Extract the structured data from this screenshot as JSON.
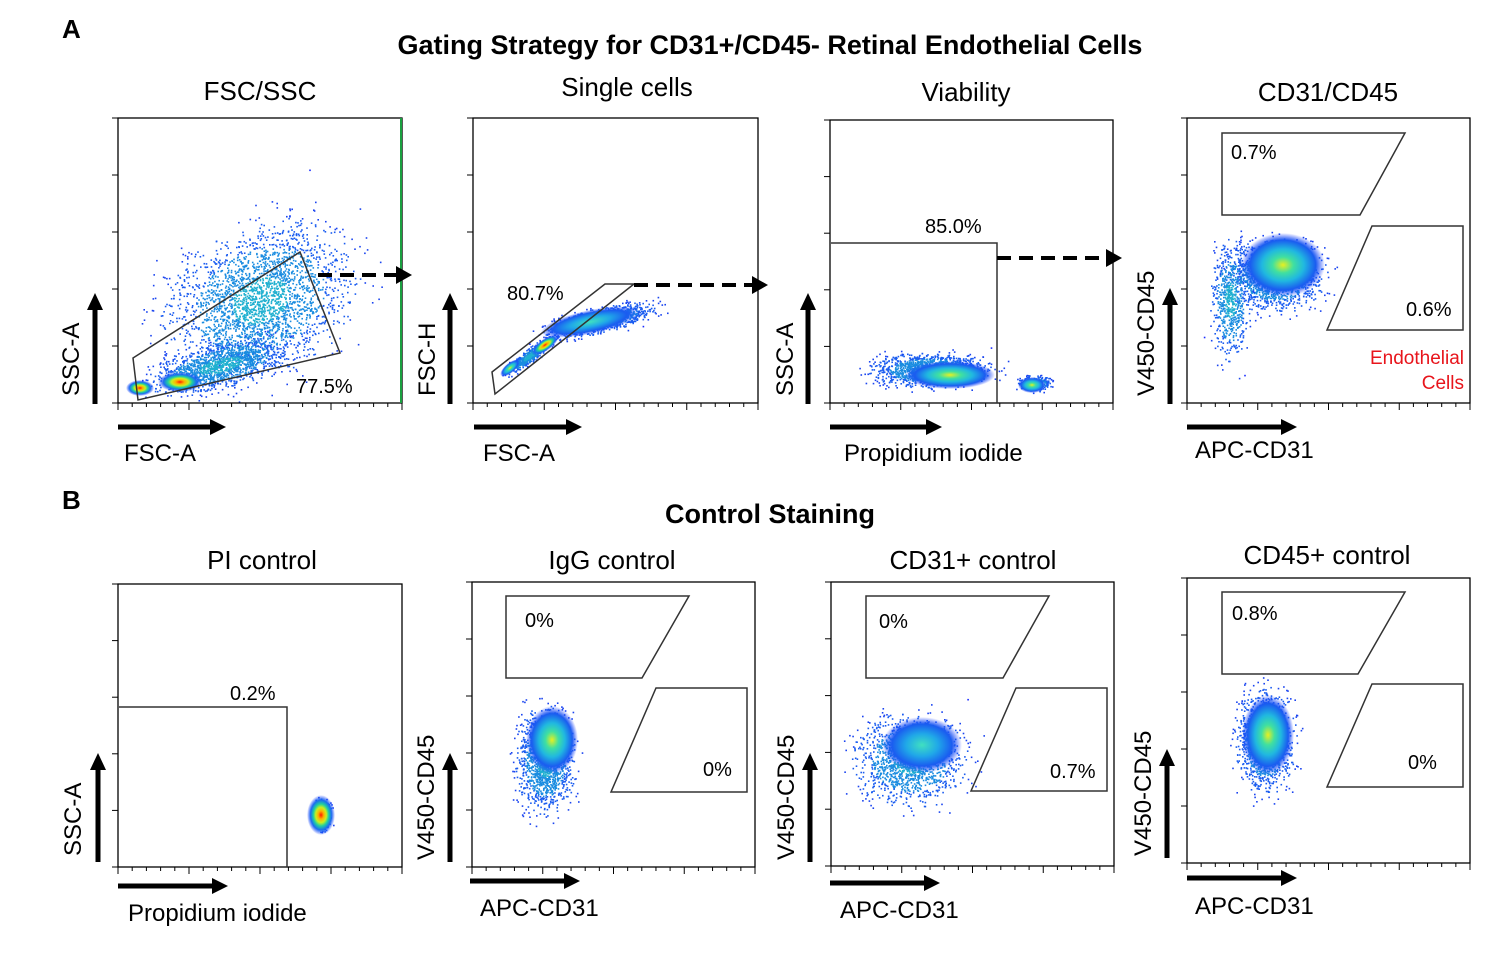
{
  "panel_labels": {
    "a": "A",
    "b": "B"
  },
  "section_titles": {
    "a": "Gating Strategy for CD31+/CD45- Retinal Endothelial Cells",
    "b": "Control Staining"
  },
  "plots": {
    "fsc_ssc": {
      "title": "FSC/SSC",
      "xlabel": "FSC-A",
      "ylabel": "SSC-A",
      "gate": "77.5%"
    },
    "single": {
      "title": "Single cells",
      "xlabel": "FSC-A",
      "ylabel": "FSC-H",
      "gate": "80.7%"
    },
    "viability": {
      "title": "Viability",
      "xlabel": "Propidium iodide",
      "ylabel": "SSC-A",
      "gate": "85.0%"
    },
    "cd31cd45": {
      "title": "CD31/CD45",
      "xlabel": "APC-CD31",
      "ylabel": "V450-CD45",
      "gate_cd45": "0.7%",
      "gate_cd31": "0.6%",
      "annotation_line1": "Endothelial",
      "annotation_line2": "Cells"
    },
    "pi_ctrl": {
      "title": "PI control",
      "xlabel": "Propidium iodide",
      "ylabel": "SSC-A",
      "gate": "0.2%"
    },
    "igg_ctrl": {
      "title": "IgG control",
      "xlabel": "APC-CD31",
      "ylabel": "V450-CD45",
      "gate_cd45": "0%",
      "gate_cd31": "0%"
    },
    "cd31_ctrl": {
      "title": "CD31+ control",
      "xlabel": "APC-CD31",
      "ylabel": "V450-CD45",
      "gate_cd45": "0%",
      "gate_cd31": "0.7%"
    },
    "cd45_ctrl": {
      "title": "CD45+ control",
      "xlabel": "APC-CD31",
      "ylabel": "V450-CD45",
      "gate_cd45": "0.8%",
      "gate_cd31": "0%"
    }
  },
  "colors": {
    "annotation": "#e8141b",
    "axis": "#000000",
    "gate": "#333333"
  }
}
